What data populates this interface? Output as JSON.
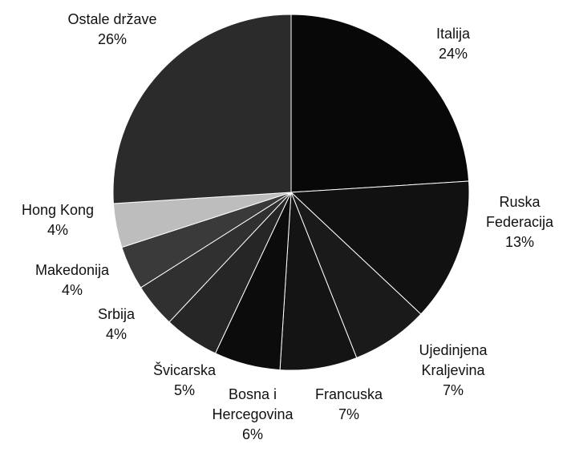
{
  "chart_data": {
    "type": "pie",
    "categories": [
      "Italija",
      "Ruska Federacija",
      "Ujedinjena Kraljevina",
      "Francuska",
      "Bosna i Hercegovina",
      "Švicarska",
      "Srbija",
      "Makedonija",
      "Hong Kong",
      "Ostale države"
    ],
    "values": [
      24,
      13,
      7,
      7,
      6,
      5,
      4,
      4,
      4,
      26
    ],
    "value_labels": [
      "24%",
      "13%",
      "7%",
      "7%",
      "6%",
      "5%",
      "4%",
      "4%",
      "4%",
      "26%"
    ],
    "colors": [
      "#080808",
      "#111111",
      "#1a1a1a",
      "#141414",
      "#0c0c0c",
      "#262626",
      "#303030",
      "#3a3a3a",
      "#bdbdbd",
      "#2b2b2b"
    ]
  }
}
